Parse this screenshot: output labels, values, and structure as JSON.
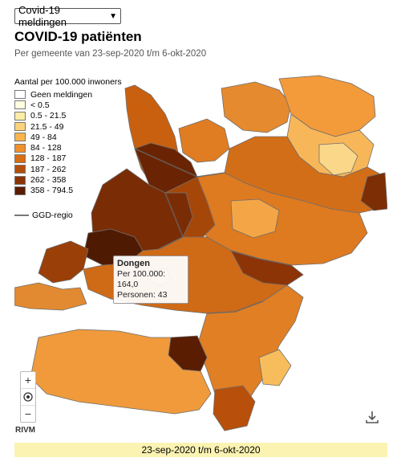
{
  "select": {
    "value": "Covid-19 meldingen"
  },
  "title": "COVID-19 patiënten",
  "subtitle": "Per gemeente van 23-sep-2020 t/m 6-okt-2020",
  "legend": {
    "title": "Aantal per 100.000 inwoners",
    "items": [
      {
        "label": "Geen meldingen",
        "color": "#ffffff"
      },
      {
        "label": "< 0.5",
        "color": "#fffee0"
      },
      {
        "label": "0.5 - 21.5",
        "color": "#fdeca6"
      },
      {
        "label": "21.5 - 49",
        "color": "#fcd27c"
      },
      {
        "label": "49 - 84",
        "color": "#f9b450"
      },
      {
        "label": "84 - 128",
        "color": "#f1902c"
      },
      {
        "label": "128 - 187",
        "color": "#d96d14"
      },
      {
        "label": "187 - 262",
        "color": "#b44f0b"
      },
      {
        "label": "262 - 358",
        "color": "#8a3406"
      },
      {
        "label": "358 - 794.5",
        "color": "#5a1d02"
      }
    ],
    "boundary_label": "GGD-regio"
  },
  "tooltip": {
    "name": "Dongen",
    "per100k": "Per 100.000: 164,0",
    "persons": "Personen: 43"
  },
  "controls": {
    "zoom_in": "+",
    "locate_icon": "target-icon",
    "zoom_out": "−"
  },
  "source": "RIVM",
  "date_bar": "23-sep-2020 t/m 6-okt-2020"
}
